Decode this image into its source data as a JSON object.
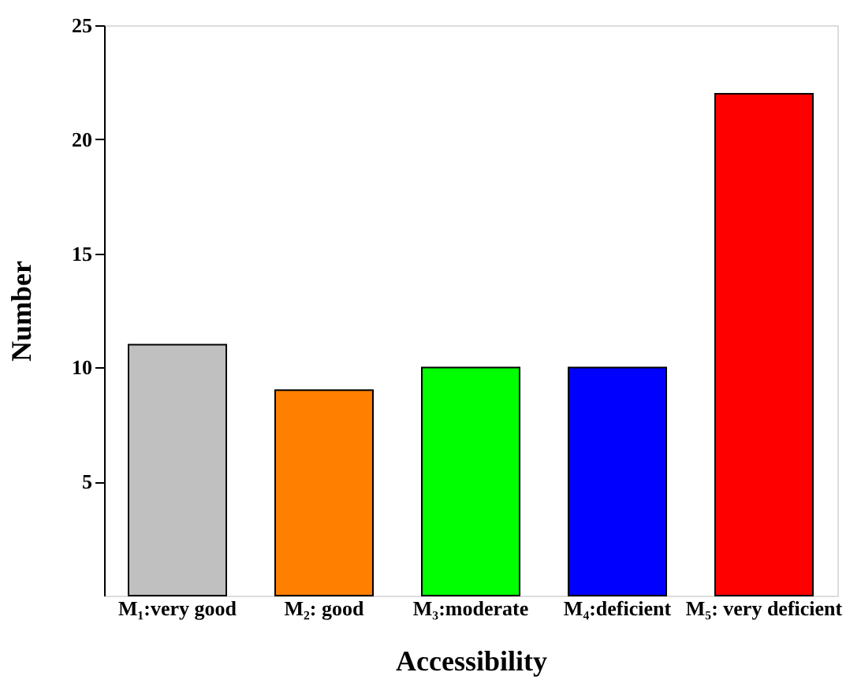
{
  "chart_data": {
    "type": "bar",
    "xlabel": "Accessibility",
    "ylabel": "Number",
    "categories": [
      "M₁:very good",
      "M₂: good",
      "M₃:moderate",
      "M₄:deficient",
      "M₅: very deficient"
    ],
    "values": [
      11,
      9,
      10,
      10,
      22
    ],
    "colors": [
      "#c0c0c0",
      "#ff8000",
      "#00ff00",
      "#0000ff",
      "#ff0000"
    ],
    "ylim": [
      0,
      25
    ],
    "yticks": [
      5,
      10,
      15,
      20,
      25
    ],
    "grid": false,
    "legend": false
  }
}
